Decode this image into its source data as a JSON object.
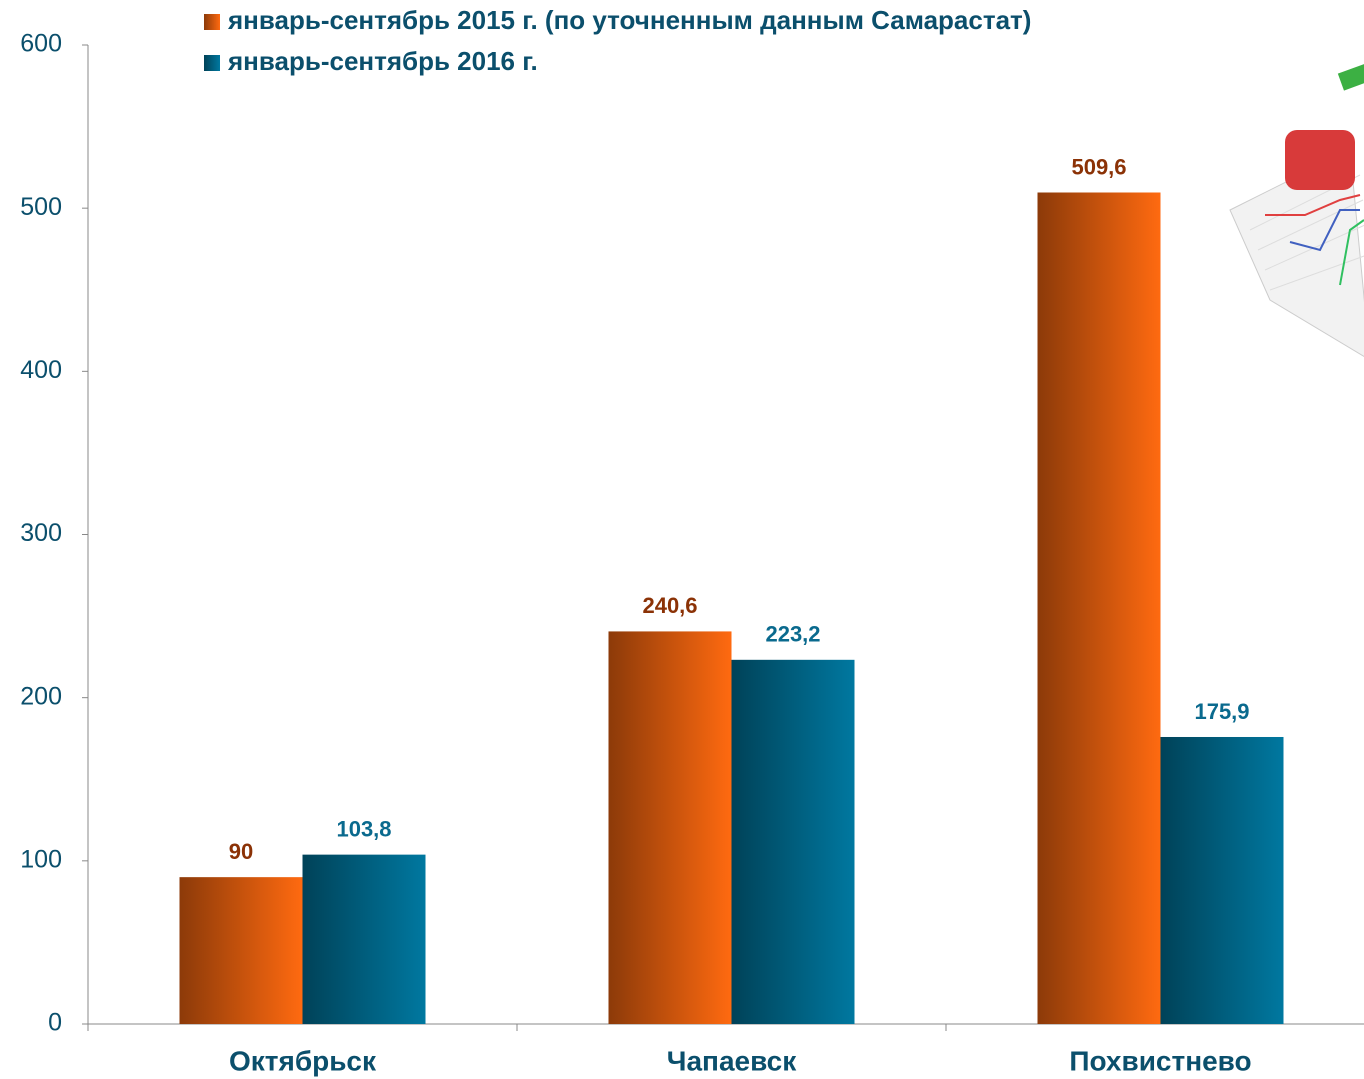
{
  "chart_data": {
    "type": "bar",
    "categories": [
      "Октябрьск",
      "Чапаевск",
      "Похвистнево"
    ],
    "series": [
      {
        "name": "январь-сентябрь 2015 г. (по уточненным данным Самарастат)",
        "color": "#ff6a10",
        "label_color": "#8b3206",
        "values": [
          90,
          240.6,
          509.6
        ],
        "value_labels": [
          "90",
          "240,6",
          "509,6"
        ]
      },
      {
        "name": "январь-сентябрь 2016 г.",
        "color": "#0078a0",
        "label_color": "#0a6a8e",
        "values": [
          103.8,
          223.2,
          175.9
        ],
        "value_labels": [
          "103,8",
          "223,2",
          "175,9"
        ]
      }
    ],
    "ylim": [
      0,
      600
    ],
    "yticks": [
      0,
      100,
      200,
      300,
      400,
      500,
      600
    ],
    "grid": false
  }
}
